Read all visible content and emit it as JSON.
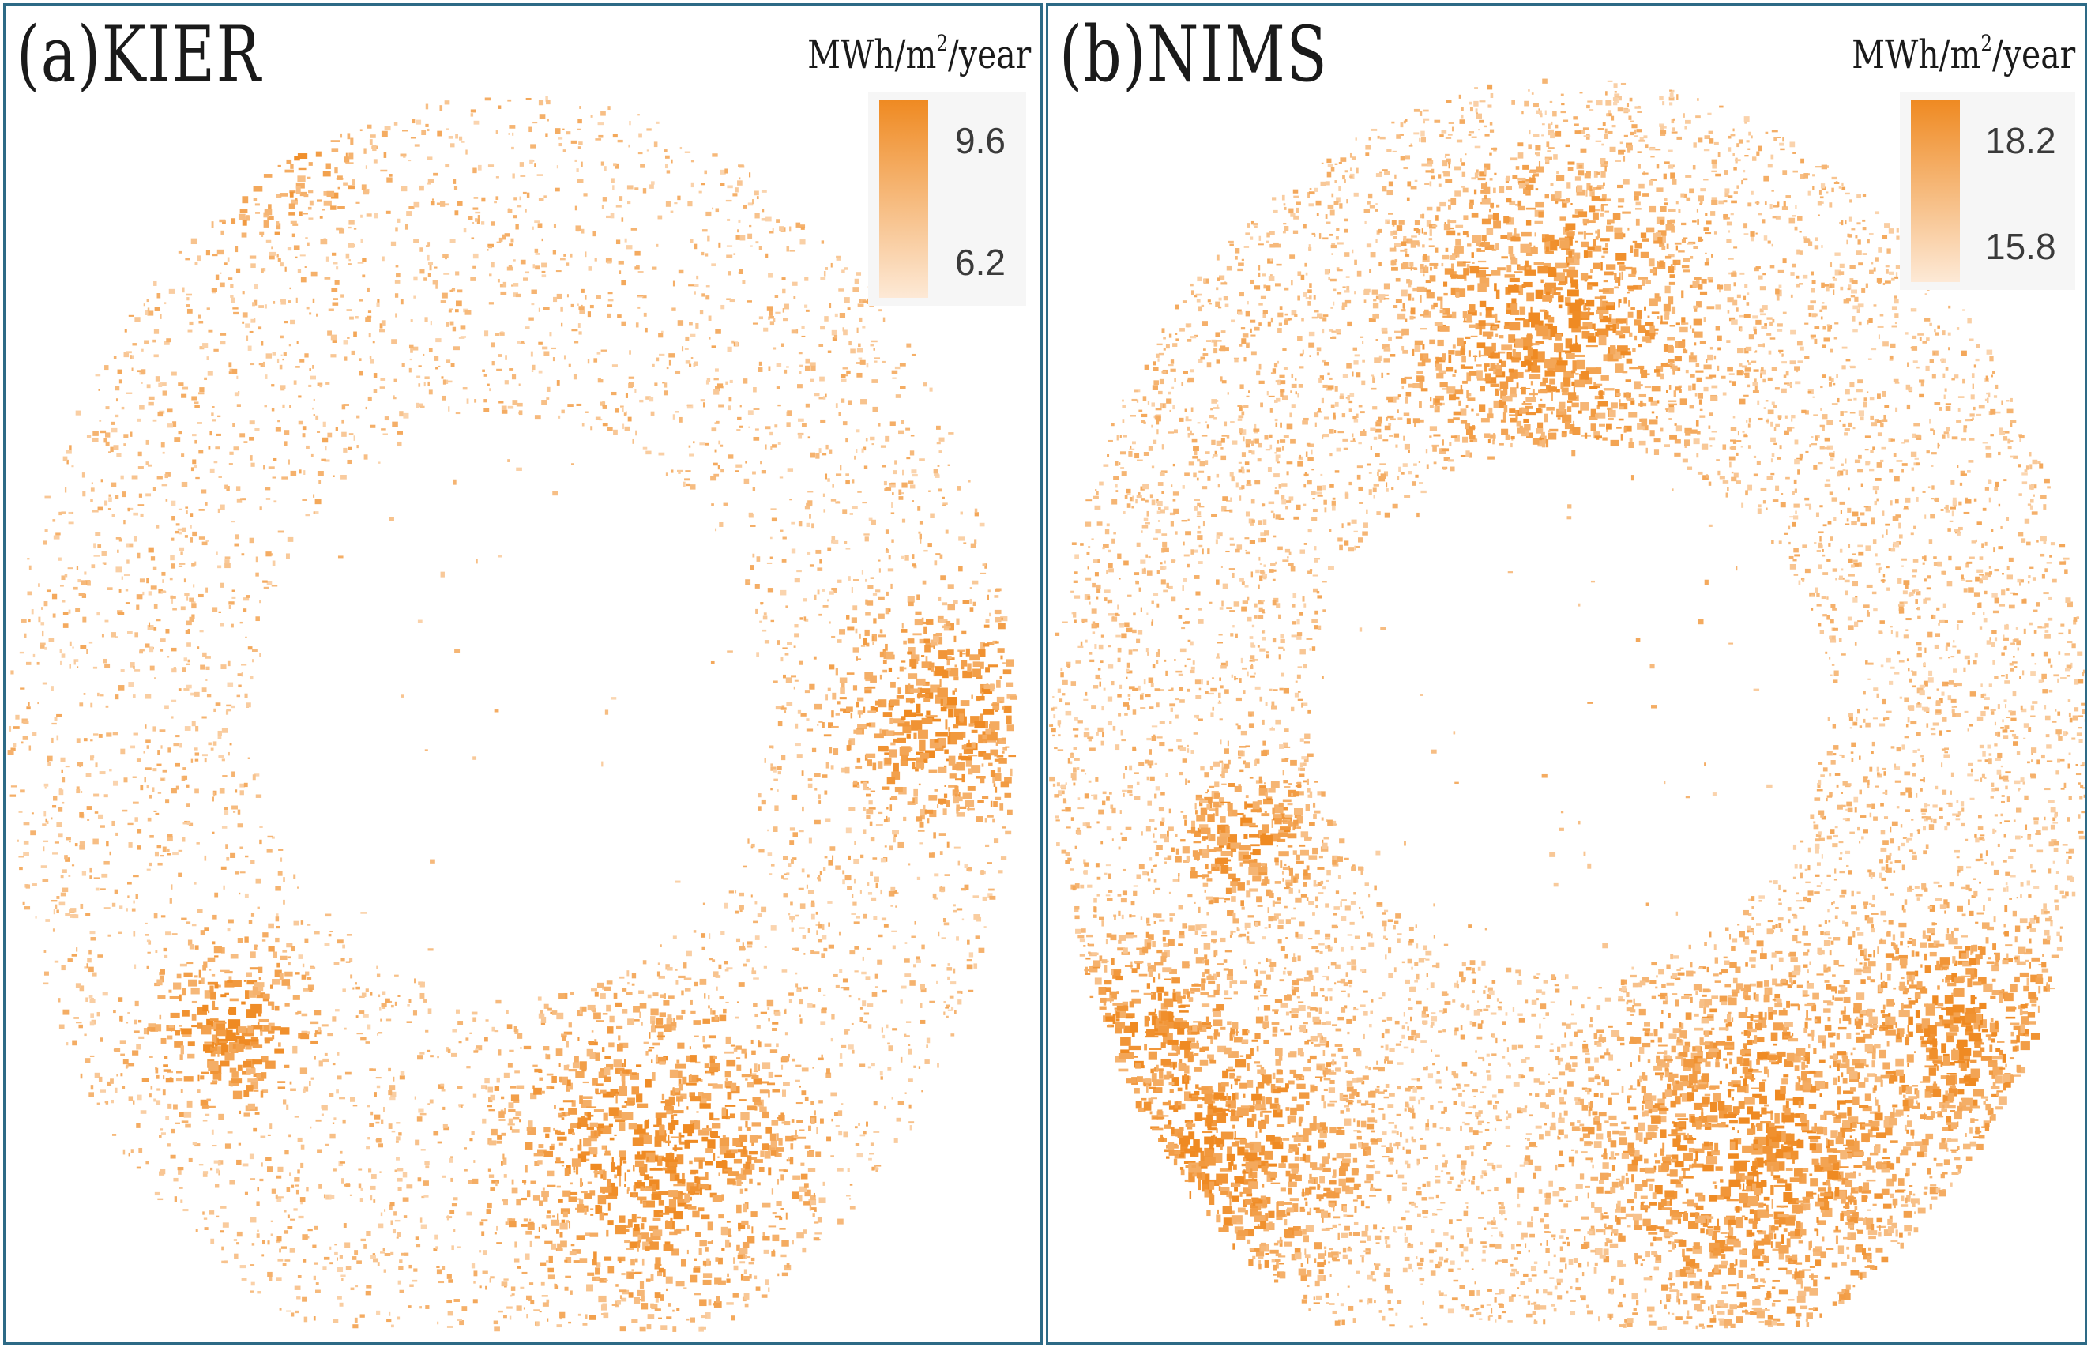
{
  "colors": {
    "ramp_high": "#ef8a22",
    "ramp_low": "#fde9d6",
    "panel_border": "#2d6a86"
  },
  "panels": [
    {
      "title": "(a)KIER",
      "unit": "MWh/m",
      "unit_exponent": "2",
      "unit_suffix": "/year",
      "legend_max": "9.6",
      "legend_min": "6.2"
    },
    {
      "title": "(b)NIMS",
      "unit": "MWh/m",
      "unit_exponent": "2",
      "unit_suffix": "/year",
      "legend_max": "18.2",
      "legend_min": "15.8"
    }
  ]
}
